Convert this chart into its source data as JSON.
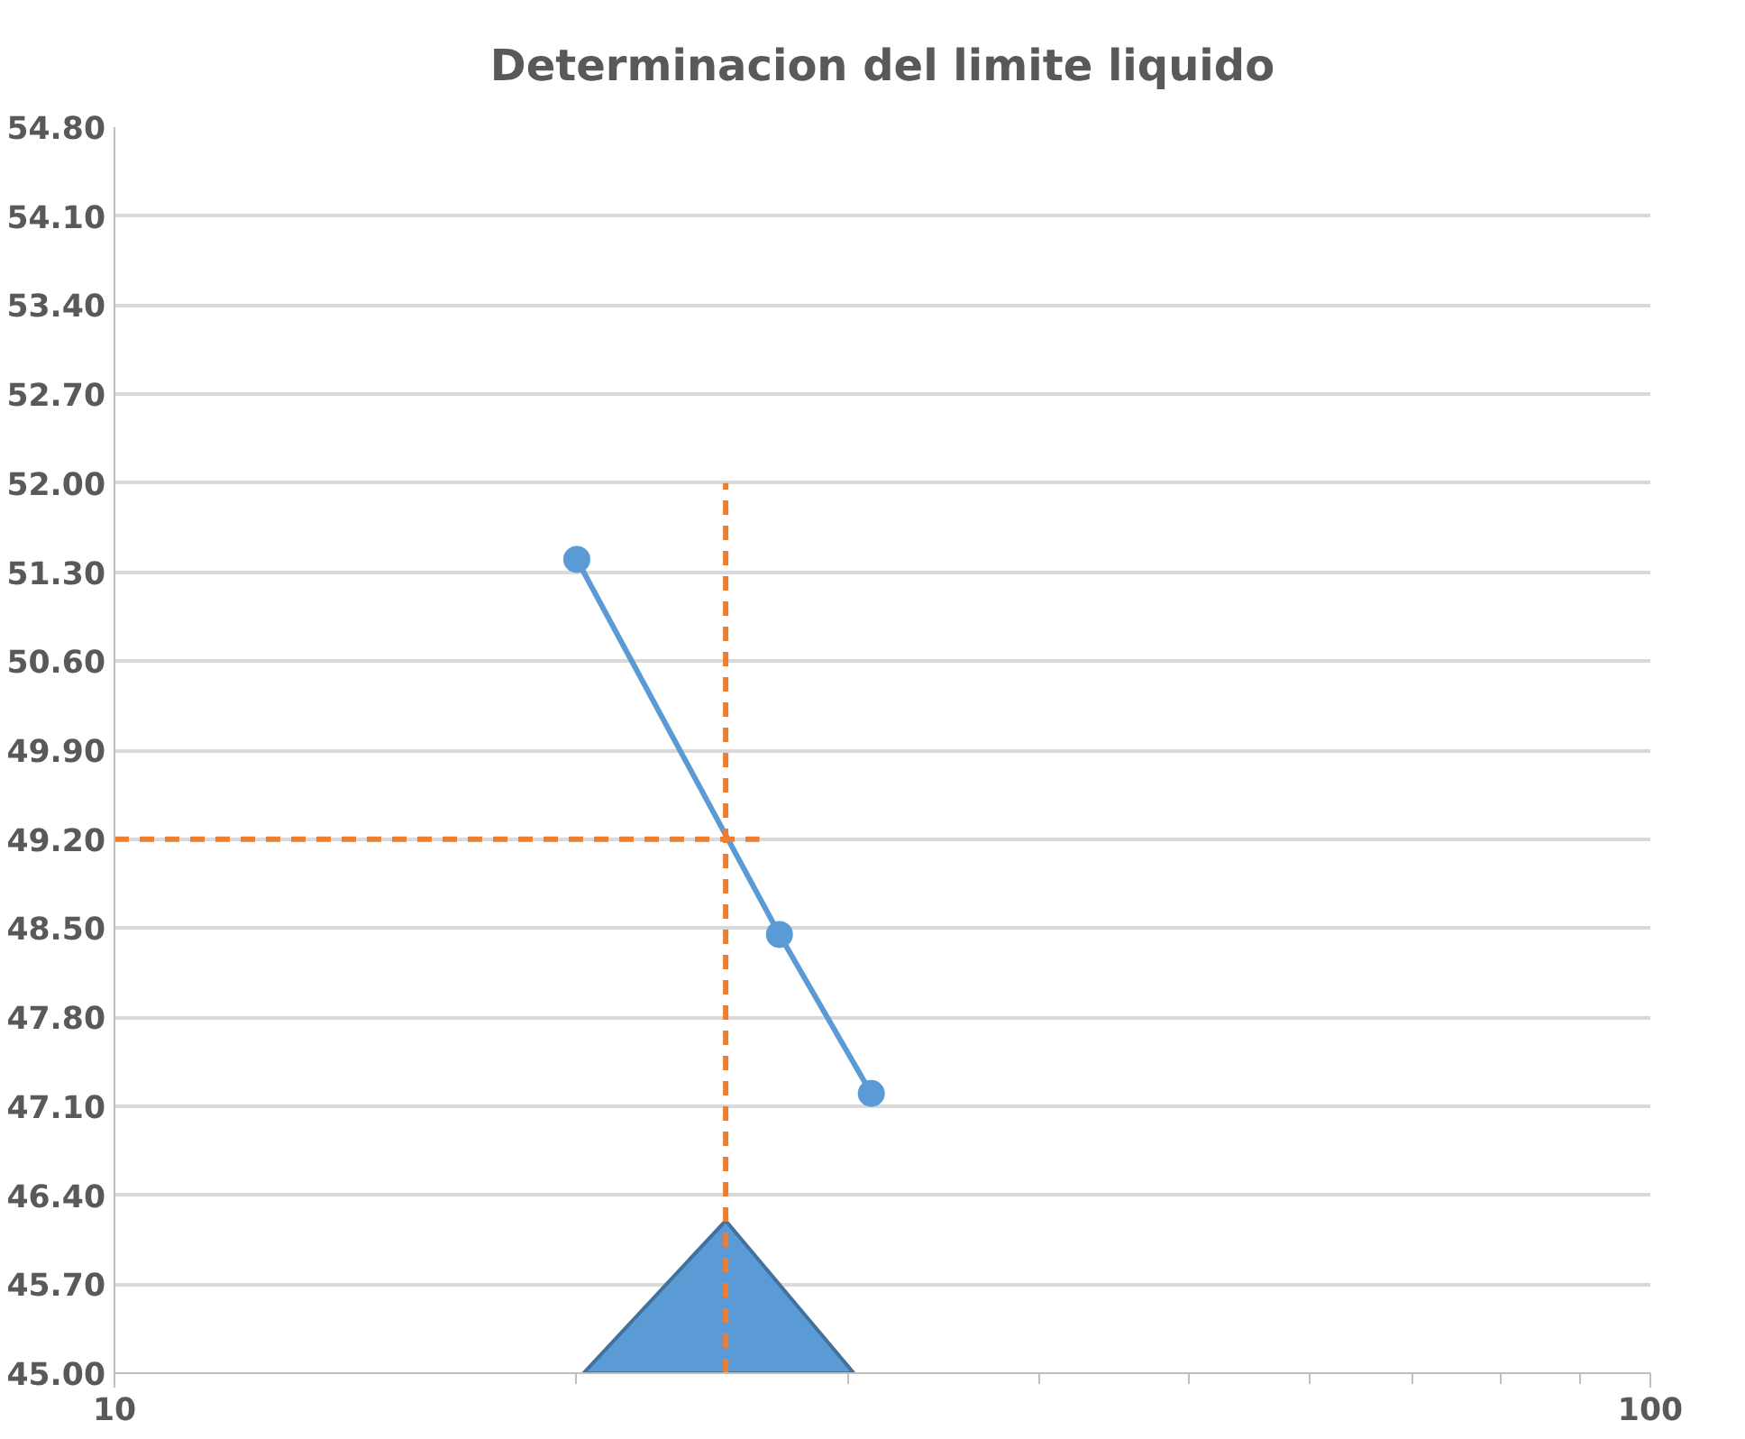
{
  "chart_data": {
    "type": "line",
    "title": "Determinacion del limite liquido",
    "log": "x",
    "xlim": [
      10,
      100
    ],
    "xticks": [
      10,
      {
        "value": 20,
        "label": null
      },
      {
        "value": 30,
        "label": null
      },
      {
        "value": 40,
        "label": null
      },
      {
        "value": 50,
        "label": null
      },
      {
        "value": 60,
        "label": null
      },
      {
        "value": 70,
        "label": null
      },
      {
        "value": 80,
        "label": null
      },
      {
        "value": 90,
        "label": null
      },
      100
    ],
    "ylim": [
      45,
      54.8
    ],
    "yticks": [
      {
        "value": 45,
        "label": "45.00"
      },
      {
        "value": 45.7,
        "label": "45.70"
      },
      {
        "value": 46.4,
        "label": "46.40"
      },
      {
        "value": 47.1,
        "label": "47.10"
      },
      {
        "value": 47.8,
        "label": "47.80"
      },
      {
        "value": 48.5,
        "label": "48.50"
      },
      {
        "value": 49.2,
        "label": "49.20"
      },
      {
        "value": 49.9,
        "label": "49.90"
      },
      {
        "value": 50.6,
        "label": "50.60"
      },
      {
        "value": 51.3,
        "label": "51.30"
      },
      {
        "value": 52,
        "label": "52.00"
      },
      {
        "value": 52.7,
        "label": "52.70"
      },
      {
        "value": 53.4,
        "label": "53.40"
      },
      {
        "value": 54.1,
        "label": "54.10"
      },
      {
        "value": 54.8,
        "label": "54.80"
      }
    ],
    "grid": "y",
    "series": [
      {
        "type": "area",
        "color": "#5b9bd5",
        "x": [
          20.2,
          25,
          30.3
        ],
        "values": [
          45,
          46.2,
          45
        ]
      },
      {
        "color": "#5b9bd5",
        "marker": "circle",
        "line_style": "solid",
        "x": [
          20,
          27.1,
          31.1
        ],
        "values": [
          51.4,
          48.45,
          47.2
        ]
      },
      {
        "color": "#ed7d31",
        "marker": "none",
        "line_style": "dashed",
        "x": [
          10,
          26.3
        ],
        "values": [
          49.2,
          49.2
        ]
      },
      {
        "color": "#ed7d31",
        "marker": "none",
        "line_style": "dashed",
        "x": [
          25,
          25
        ],
        "values": [
          45,
          52
        ]
      }
    ]
  }
}
